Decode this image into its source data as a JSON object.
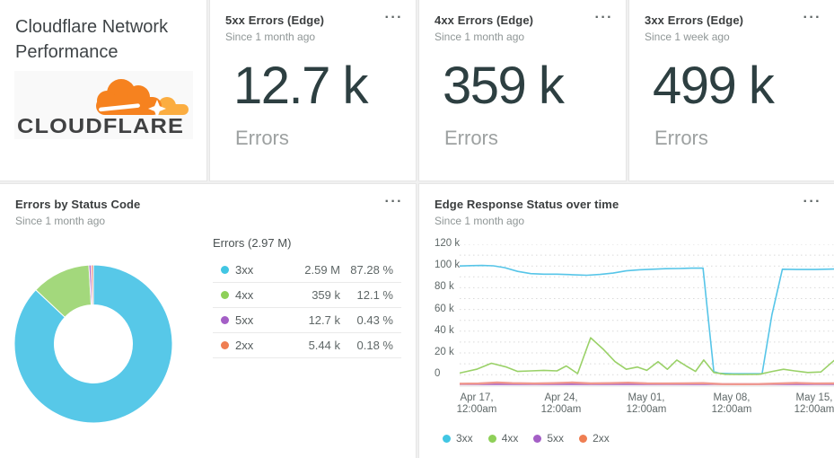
{
  "icons": {
    "ellipsis_menu": "···"
  },
  "brand_card": {
    "title": "Cloudflare Network Performance",
    "logo_wordmark": "CLOUDFLARE",
    "logo_colors": {
      "cloud_main": "#f6821f",
      "cloud_light": "#fbad41",
      "wordmark": "#404142"
    }
  },
  "billboards": [
    {
      "title": "5xx Errors (Edge)",
      "subtitle": "Since 1 month ago",
      "value": "12.7 k",
      "unit": "Errors"
    },
    {
      "title": "4xx Errors (Edge)",
      "subtitle": "Since 1 month ago",
      "value": "359 k",
      "unit": "Errors"
    },
    {
      "title": "3xx Errors (Edge)",
      "subtitle": "Since 1 week ago",
      "value": "499 k",
      "unit": "Errors"
    }
  ],
  "chart_data": [
    {
      "type": "pie",
      "donut": true,
      "title": "Errors by Status Code",
      "subtitle": "Since 1 month ago",
      "total_label": "Errors (2.97 M)",
      "legend_position": "right-table",
      "slices": [
        {
          "label": "3xx",
          "value": "2.59 M",
          "percent": 87.28,
          "percent_label": "87.28 %",
          "color": "#57c8e8",
          "dot_color": "#41c6e3"
        },
        {
          "label": "4xx",
          "value": "359 k",
          "percent": 12.1,
          "percent_label": "12.1 %",
          "color": "#a3d87c",
          "dot_color": "#8ed058"
        },
        {
          "label": "5xx",
          "value": "12.7 k",
          "percent": 0.43,
          "percent_label": "0.43 %",
          "color": "#ab62c5",
          "dot_color": "#a45fc6"
        },
        {
          "label": "2xx",
          "value": "5.44 k",
          "percent": 0.18,
          "percent_label": "0.18 %",
          "color": "#f08a7d",
          "dot_color": "#ef7e52"
        }
      ]
    },
    {
      "type": "line",
      "title": "Edge Response Status over time",
      "subtitle": "Since 1 month ago",
      "grid": "dotted horizontal, every 10k",
      "legend_position": "bottom",
      "ylim_k": [
        0,
        120
      ],
      "y_ticks": [
        {
          "label": "120 k",
          "k": 120
        },
        {
          "label": "100 k",
          "k": 100
        },
        {
          "label": "80 k",
          "k": 80
        },
        {
          "label": "60 k",
          "k": 60
        },
        {
          "label": "40 k",
          "k": 40
        },
        {
          "label": "20 k",
          "k": 20
        },
        {
          "label": "0",
          "k": 0
        }
      ],
      "x_ticks": [
        {
          "frac": 0.046,
          "line1": "Apr 17,",
          "line2": "12:00am"
        },
        {
          "frac": 0.271,
          "line1": "Apr 24,",
          "line2": "12:00am"
        },
        {
          "frac": 0.499,
          "line1": "May 01,",
          "line2": "12:00am"
        },
        {
          "frac": 0.727,
          "line1": "May 08,",
          "line2": "12:00am"
        },
        {
          "frac": 0.947,
          "line1": "May 15,",
          "line2": "12:00am"
        }
      ],
      "series": [
        {
          "name": "3xx",
          "color": "#56c5e8",
          "dot_color": "#41c6e3",
          "width": 1.6,
          "points_frac_k": [
            [
              0,
              100
            ],
            [
              0.03,
              100.3
            ],
            [
              0.06,
              100.5
            ],
            [
              0.09,
              100.2
            ],
            [
              0.12,
              98.5
            ],
            [
              0.155,
              95
            ],
            [
              0.19,
              93
            ],
            [
              0.225,
              92.5
            ],
            [
              0.26,
              92.5
            ],
            [
              0.3,
              92
            ],
            [
              0.34,
              91.5
            ],
            [
              0.375,
              92.2
            ],
            [
              0.41,
              93.5
            ],
            [
              0.445,
              95.5
            ],
            [
              0.48,
              96.5
            ],
            [
              0.515,
              97
            ],
            [
              0.55,
              97.5
            ],
            [
              0.585,
              97.7
            ],
            [
              0.62,
              98
            ],
            [
              0.65,
              98
            ],
            [
              0.679,
              3
            ],
            [
              0.694,
              1.2
            ],
            [
              0.73,
              0.8
            ],
            [
              0.77,
              0.8
            ],
            [
              0.808,
              0.8
            ],
            [
              0.834,
              55
            ],
            [
              0.862,
              97
            ],
            [
              0.9,
              96.8
            ],
            [
              0.95,
              96.8
            ],
            [
              1,
              97.2
            ]
          ]
        },
        {
          "name": "4xx",
          "color": "#9ad168",
          "dot_color": "#8ed058",
          "width": 1.6,
          "points_frac_k": [
            [
              0,
              1.5
            ],
            [
              0.045,
              5
            ],
            [
              0.085,
              10.5
            ],
            [
              0.125,
              7
            ],
            [
              0.155,
              3
            ],
            [
              0.19,
              3.5
            ],
            [
              0.225,
              4
            ],
            [
              0.26,
              3.5
            ],
            [
              0.285,
              8
            ],
            [
              0.315,
              1
            ],
            [
              0.35,
              34
            ],
            [
              0.385,
              23
            ],
            [
              0.415,
              12
            ],
            [
              0.445,
              5
            ],
            [
              0.475,
              7
            ],
            [
              0.5,
              4
            ],
            [
              0.53,
              12
            ],
            [
              0.555,
              5
            ],
            [
              0.58,
              13.5
            ],
            [
              0.605,
              8
            ],
            [
              0.63,
              3
            ],
            [
              0.652,
              13.5
            ],
            [
              0.679,
              2
            ],
            [
              0.71,
              0.3
            ],
            [
              0.75,
              0.2
            ],
            [
              0.8,
              0.3
            ],
            [
              0.835,
              3
            ],
            [
              0.865,
              5
            ],
            [
              0.895,
              3.5
            ],
            [
              0.93,
              2
            ],
            [
              0.965,
              2.5
            ],
            [
              1,
              13
            ]
          ]
        },
        {
          "name": "5xx",
          "color": "#a45fc6",
          "dot_color": "#a45fc6",
          "width": 2,
          "floor": true,
          "points_frac_k": [
            [
              0,
              0.1
            ],
            [
              0.2,
              0.15
            ],
            [
              0.4,
              0.1
            ],
            [
              0.6,
              0.15
            ],
            [
              0.8,
              0.1
            ],
            [
              1,
              0.1
            ]
          ]
        },
        {
          "name": "2xx",
          "color": "#ef988e",
          "dot_color": "#ef7e52",
          "width": 2.4,
          "floor": true,
          "points_frac_k": [
            [
              0,
              0.3
            ],
            [
              0.05,
              0.4
            ],
            [
              0.1,
              0.9
            ],
            [
              0.14,
              0.6
            ],
            [
              0.2,
              0.4
            ],
            [
              0.25,
              0.6
            ],
            [
              0.3,
              0.9
            ],
            [
              0.35,
              0.5
            ],
            [
              0.4,
              0.6
            ],
            [
              0.45,
              0.8
            ],
            [
              0.5,
              0.5
            ],
            [
              0.55,
              0.4
            ],
            [
              0.6,
              0.5
            ],
            [
              0.65,
              0.6
            ],
            [
              0.7,
              0.15
            ],
            [
              0.75,
              0.1
            ],
            [
              0.8,
              0.15
            ],
            [
              0.85,
              0.4
            ],
            [
              0.9,
              0.7
            ],
            [
              0.95,
              0.4
            ],
            [
              1,
              0.5
            ]
          ]
        }
      ]
    }
  ]
}
